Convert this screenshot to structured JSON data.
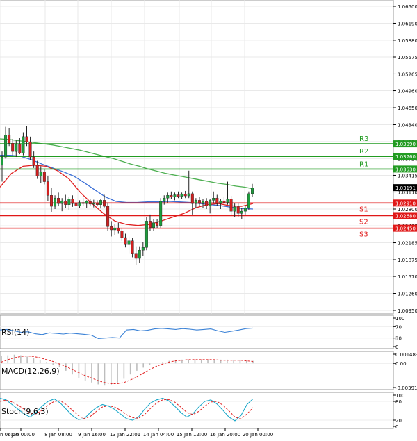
{
  "chart_data": {
    "type": "candlestick",
    "instrument_note": "Price chart with support/resistance levels and indicator panes",
    "x_tick_labels": [
      "n 00:00",
      "7 Jan 00:00",
      "8 Jan 08:00",
      "9 Jan 16:00",
      "13 Jan 22:01",
      "14 Jan 04:00",
      "15 Jan 12:00",
      "16 Jan 20:00",
      "20 Jan 00:00"
    ],
    "price_axis": {
      "range": [
        1.0095,
        1.065
      ],
      "ticks": [
        "1.06500",
        "1.06190",
        "1.05880",
        "1.05575",
        "1.05265",
        "1.04960",
        "1.04650",
        "1.04340",
        "1.04030",
        "1.03720",
        "1.03415",
        "1.03110",
        "1.02800",
        "1.02495",
        "1.02185",
        "1.01875",
        "1.01570",
        "1.01260",
        "1.00950"
      ]
    },
    "levels": [
      {
        "name": "R3",
        "value": 1.0399,
        "label": "1.03990"
      },
      {
        "name": "R2",
        "value": 1.0376,
        "label": "1.03760"
      },
      {
        "name": "R1",
        "value": 1.0353,
        "label": "1.03530"
      },
      {
        "name": "S1",
        "value": 1.0291,
        "label": "1.02910"
      },
      {
        "name": "S2",
        "value": 1.0268,
        "label": "1.02680"
      },
      {
        "name": "S3",
        "value": 1.0245,
        "label": "1.02450"
      }
    ],
    "current_price": {
      "value": 1.03191,
      "label": "1.03191"
    },
    "candles": [
      [
        1.036,
        1.0385,
        1.033,
        1.0375
      ],
      [
        1.0375,
        1.043,
        1.0372,
        1.0415
      ],
      [
        1.0415,
        1.0428,
        1.0395,
        1.04
      ],
      [
        1.04,
        1.0408,
        1.0378,
        1.0385
      ],
      [
        1.0385,
        1.0405,
        1.0375,
        1.0398
      ],
      [
        1.0398,
        1.041,
        1.038,
        1.0382
      ],
      [
        1.0382,
        1.042,
        1.0378,
        1.0412
      ],
      [
        1.0412,
        1.0432,
        1.0395,
        1.0402
      ],
      [
        1.0402,
        1.0412,
        1.037,
        1.0375
      ],
      [
        1.0375,
        1.0385,
        1.0355,
        1.036
      ],
      [
        1.036,
        1.0368,
        1.0335,
        1.034
      ],
      [
        1.034,
        1.0358,
        1.0328,
        1.0348
      ],
      [
        1.0348,
        1.0352,
        1.0325,
        1.033
      ],
      [
        1.033,
        1.034,
        1.0295,
        1.0305
      ],
      [
        1.0305,
        1.0318,
        1.0275,
        1.0285
      ],
      [
        1.0285,
        1.0305,
        1.028,
        1.03
      ],
      [
        1.03,
        1.031,
        1.0285,
        1.029
      ],
      [
        1.029,
        1.03,
        1.0276,
        1.0295
      ],
      [
        1.0295,
        1.0306,
        1.0282,
        1.0288
      ],
      [
        1.0288,
        1.0302,
        1.0278,
        1.0298
      ],
      [
        1.0298,
        1.0305,
        1.0284,
        1.029
      ],
      [
        1.029,
        1.0298,
        1.028,
        1.0286
      ],
      [
        1.0286,
        1.0296,
        1.0282,
        1.0292
      ],
      [
        1.0292,
        1.03,
        1.0286,
        1.029
      ],
      [
        1.029,
        1.0296,
        1.0282,
        1.0294
      ],
      [
        1.0294,
        1.0298,
        1.0285,
        1.0289
      ],
      [
        1.0289,
        1.0297,
        1.0283,
        1.0291
      ],
      [
        1.0291,
        1.0296,
        1.0285,
        1.0288
      ],
      [
        1.0288,
        1.0298,
        1.0281,
        1.0296
      ],
      [
        1.0296,
        1.0306,
        1.0283,
        1.0285
      ],
      [
        1.0285,
        1.0292,
        1.024,
        1.0248
      ],
      [
        1.0248,
        1.0258,
        1.023,
        1.0242
      ],
      [
        1.0242,
        1.0252,
        1.0232,
        1.0245
      ],
      [
        1.0245,
        1.0255,
        1.0235,
        1.024
      ],
      [
        1.024,
        1.0246,
        1.0222,
        1.0228
      ],
      [
        1.0228,
        1.0235,
        1.021,
        1.0215
      ],
      [
        1.0215,
        1.023,
        1.0198,
        1.0222
      ],
      [
        1.0222,
        1.0228,
        1.0192,
        1.0198
      ],
      [
        1.0198,
        1.0212,
        1.0178,
        1.019
      ],
      [
        1.019,
        1.0212,
        1.0182,
        1.0205
      ],
      [
        1.0205,
        1.022,
        1.0195,
        1.021
      ],
      [
        1.021,
        1.0265,
        1.0205,
        1.0258
      ],
      [
        1.0258,
        1.027,
        1.024,
        1.0246
      ],
      [
        1.0246,
        1.0262,
        1.024,
        1.0255
      ],
      [
        1.0255,
        1.0262,
        1.0245,
        1.025
      ],
      [
        1.025,
        1.03,
        1.0246,
        1.0294
      ],
      [
        1.0294,
        1.0305,
        1.0288,
        1.03
      ],
      [
        1.03,
        1.031,
        1.0292,
        1.0305
      ],
      [
        1.0305,
        1.0312,
        1.0298,
        1.0302
      ],
      [
        1.0302,
        1.031,
        1.0296,
        1.0306
      ],
      [
        1.0306,
        1.0312,
        1.03,
        1.0303
      ],
      [
        1.0303,
        1.031,
        1.0298,
        1.0307
      ],
      [
        1.0307,
        1.0313,
        1.03,
        1.0304
      ],
      [
        1.0304,
        1.035,
        1.03,
        1.0308
      ],
      [
        1.0308,
        1.0312,
        1.027,
        1.029
      ],
      [
        1.029,
        1.03,
        1.0282,
        1.0296
      ],
      [
        1.0296,
        1.0302,
        1.0286,
        1.029
      ],
      [
        1.029,
        1.0298,
        1.0282,
        1.0294
      ],
      [
        1.0294,
        1.03,
        1.028,
        1.0286
      ],
      [
        1.0286,
        1.0298,
        1.0272,
        1.0296
      ],
      [
        1.0296,
        1.0312,
        1.029,
        1.03
      ],
      [
        1.03,
        1.0306,
        1.0286,
        1.029
      ],
      [
        1.029,
        1.0298,
        1.028,
        1.0295
      ],
      [
        1.0295,
        1.0302,
        1.0288,
        1.0292
      ],
      [
        1.0292,
        1.033,
        1.0288,
        1.0298
      ],
      [
        1.0298,
        1.0304,
        1.0268,
        1.0276
      ],
      [
        1.0276,
        1.029,
        1.0266,
        1.0284
      ],
      [
        1.0284,
        1.029,
        1.0266,
        1.0272
      ],
      [
        1.0272,
        1.0282,
        1.0262,
        1.0276
      ],
      [
        1.0276,
        1.0286,
        1.027,
        1.0282
      ],
      [
        1.0282,
        1.0312,
        1.0278,
        1.0308
      ],
      [
        1.0308,
        1.0326,
        1.0302,
        1.0319
      ]
    ],
    "ma_slow_green": [
      1.0408,
      1.0407,
      1.0405,
      1.0403,
      1.0401,
      1.0399,
      1.0397,
      1.0394,
      1.0391,
      1.0388,
      1.0384,
      1.038,
      1.0376,
      1.0372,
      1.0367,
      1.0362,
      1.0358,
      1.0353,
      1.0349,
      1.0345,
      1.0342,
      1.0339,
      1.0336,
      1.0333,
      1.033,
      1.0327,
      1.0325,
      1.0322,
      1.032,
      1.0317
    ],
    "ma_mid_blue": [
      1.0378,
      1.0378,
      1.0376,
      1.037,
      1.0362,
      1.0355,
      1.0348,
      1.034,
      1.0328,
      1.0315,
      1.0302,
      1.0294,
      1.0292,
      1.0292,
      1.0293,
      1.0293,
      1.0294,
      1.0293,
      1.0292,
      1.029,
      1.0288,
      1.0286,
      1.0283,
      1.0281,
      1.028
    ],
    "ma_fast_red": [
      1.032,
      1.0345,
      1.0358,
      1.036,
      1.0358,
      1.035,
      1.0335,
      1.031,
      1.029,
      1.0272,
      1.0258,
      1.0252,
      1.025,
      1.0252,
      1.0258,
      1.0265,
      1.0272,
      1.0282,
      1.0288,
      1.029,
      1.0286,
      1.0285,
      1.029
    ],
    "rsi": {
      "label": "RSI(14)",
      "range": [
        0,
        100
      ],
      "ticks": [
        "100",
        "70",
        "30",
        "0"
      ],
      "values": [
        58,
        60,
        55,
        50,
        52,
        45,
        42,
        48,
        46,
        44,
        47,
        45,
        43,
        40,
        28,
        30,
        32,
        30,
        58,
        60,
        55,
        57,
        62,
        64,
        62,
        60,
        63,
        61,
        58,
        60,
        62,
        55,
        50,
        54,
        58,
        63,
        65
      ]
    },
    "macd": {
      "label": "MACD(12,26,9)",
      "ticks": [
        "0.001483",
        "0.00",
        "-0.003914"
      ],
      "hist": [
        0.0012,
        0.0013,
        0.0014,
        0.0013,
        0.0011,
        0.0008,
        0.0005,
        0.0002,
        -0.0002,
        -0.0006,
        -0.0012,
        -0.0018,
        -0.0024,
        -0.0028,
        -0.0031,
        -0.0034,
        -0.0036,
        -0.0035,
        -0.0031,
        -0.0025,
        -0.0018,
        -0.0012,
        -0.0007,
        -0.0003,
        0.0,
        0.0002,
        0.0004,
        0.0005,
        0.0006,
        0.0006,
        0.0006,
        0.0006,
        0.0005,
        0.0005,
        0.0006,
        0.0006,
        0.0005,
        0.0005,
        0.0004,
        0.0004
      ],
      "signal": [
        0.0002,
        0.0006,
        0.0009,
        0.0011,
        0.0012,
        0.0011,
        0.0009,
        0.0006,
        0.0003,
        -0.0001,
        -0.0005,
        -0.001,
        -0.0015,
        -0.002,
        -0.0024,
        -0.0028,
        -0.0031,
        -0.0033,
        -0.0033,
        -0.0031,
        -0.0027,
        -0.0022,
        -0.0016,
        -0.001,
        -0.0005,
        -0.0001,
        0.0002,
        0.0004,
        0.0005,
        0.0006,
        0.0006,
        0.0006,
        0.0006,
        0.0006,
        0.0005,
        0.0005,
        0.0005,
        0.0005,
        0.0004,
        0.0003
      ]
    },
    "stoch": {
      "label": "Stoch(9,6,3)",
      "range": [
        0,
        100
      ],
      "ticks": [
        "100",
        "80",
        "20",
        "0"
      ],
      "k": [
        90,
        85,
        70,
        55,
        40,
        30,
        45,
        65,
        80,
        88,
        75,
        55,
        35,
        22,
        25,
        45,
        60,
        70,
        65,
        55,
        40,
        25,
        20,
        30,
        55,
        75,
        85,
        90,
        82,
        65,
        45,
        30,
        40,
        62,
        80,
        85,
        72,
        52,
        30,
        18,
        35,
        70,
        88
      ],
      "d": [
        80,
        84,
        78,
        68,
        55,
        42,
        40,
        52,
        68,
        80,
        82,
        70,
        52,
        35,
        25,
        32,
        48,
        62,
        66,
        62,
        52,
        38,
        28,
        26,
        38,
        58,
        75,
        85,
        86,
        78,
        62,
        45,
        38,
        48,
        65,
        78,
        80,
        68,
        50,
        30,
        24,
        40,
        60
      ]
    }
  }
}
